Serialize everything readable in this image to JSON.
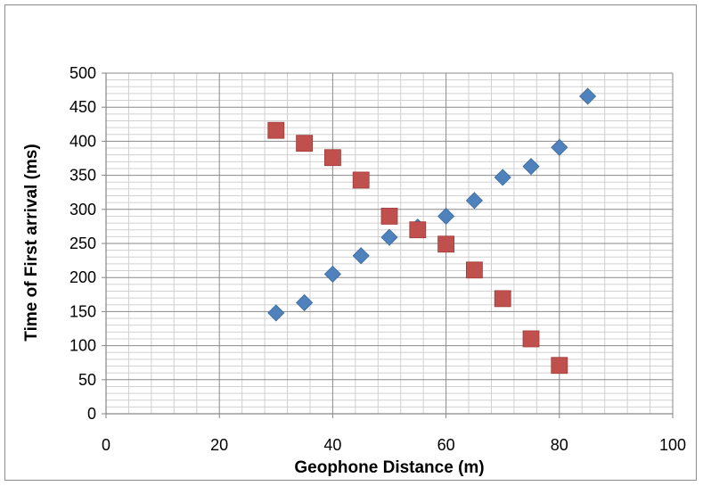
{
  "chart_data": {
    "type": "scatter",
    "title": "",
    "xlabel": "Geophone Distance (m)",
    "ylabel": "Time of First arrival (ms)",
    "xlim": [
      0,
      100
    ],
    "ylim": [
      0,
      500
    ],
    "x_ticks": [
      0,
      20,
      40,
      60,
      80,
      100
    ],
    "y_ticks": [
      0,
      50,
      100,
      150,
      200,
      250,
      300,
      350,
      400,
      450,
      500
    ],
    "grid": true,
    "minor_grid": true,
    "legend": "none",
    "series": [
      {
        "marker": "diamond",
        "color": "#4f81bd",
        "points": [
          [
            30,
            148
          ],
          [
            35,
            163
          ],
          [
            40,
            205
          ],
          [
            45,
            232
          ],
          [
            50,
            259
          ],
          [
            55,
            274
          ],
          [
            60,
            290
          ],
          [
            65,
            313
          ],
          [
            70,
            347
          ],
          [
            75,
            363
          ],
          [
            80,
            391
          ],
          [
            85,
            466
          ]
        ]
      },
      {
        "marker": "square",
        "color": "#c0504d",
        "points": [
          [
            30,
            416
          ],
          [
            35,
            397
          ],
          [
            40,
            376
          ],
          [
            45,
            343
          ],
          [
            50,
            290
          ],
          [
            55,
            270
          ],
          [
            60,
            249
          ],
          [
            65,
            211
          ],
          [
            70,
            169
          ],
          [
            75,
            110
          ],
          [
            80,
            71
          ]
        ]
      }
    ]
  }
}
